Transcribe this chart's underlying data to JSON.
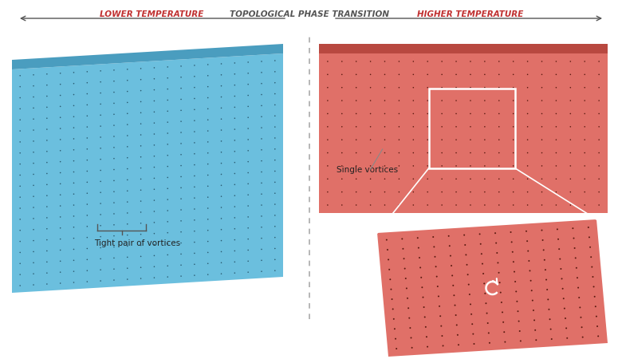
{
  "blue_color": "#6BBFDE",
  "blue_edge_color": "#4A9DBF",
  "red_color": "#E07068",
  "red_edge_color": "#B84840",
  "arrow_color_blue": "#2A5A70",
  "arrow_color_red": "#5A1A10",
  "bg_color": "#ffffff",
  "title_color_left": "#C03030",
  "title_color_right": "#C03030",
  "bottom_label_left": "LOWER TEMPERATURE",
  "bottom_label_center": "TOPOLOGICAL PHASE TRANSITION",
  "bottom_label_right": "HIGHER TEMPERATURE",
  "label_tight": "Tight pair of vortices",
  "label_single": "Single vortices",
  "divider_color": "#aaaaaa",
  "bracket_color": "#555555",
  "zoom_line_color": "#aaccdd"
}
